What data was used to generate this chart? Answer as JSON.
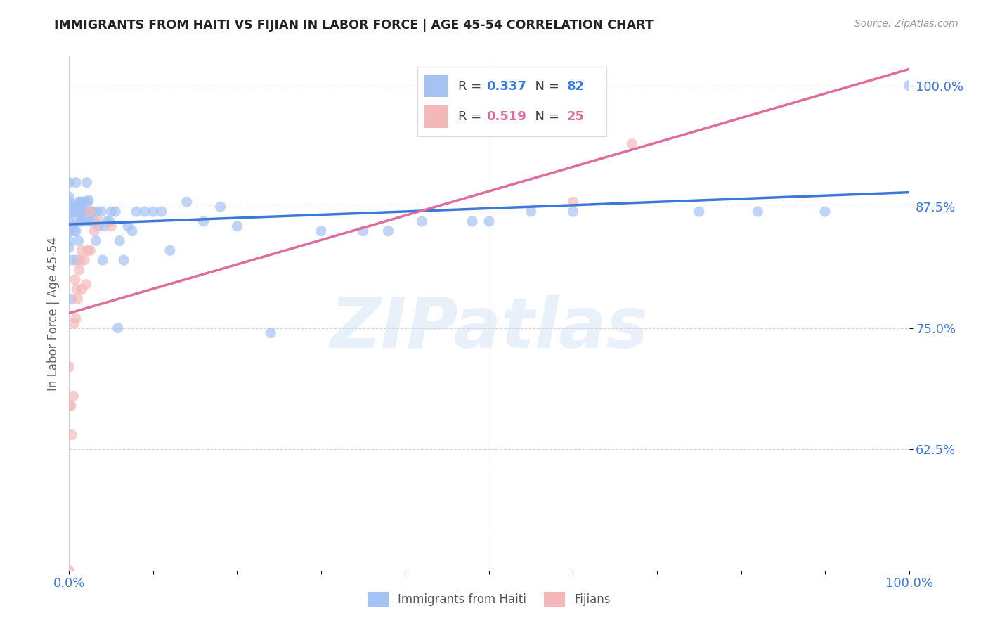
{
  "title": "IMMIGRANTS FROM HAITI VS FIJIAN IN LABOR FORCE | AGE 45-54 CORRELATION CHART",
  "source": "Source: ZipAtlas.com",
  "ylabel": "In Labor Force | Age 45-54",
  "xlim": [
    0.0,
    1.0
  ],
  "ylim": [
    0.5,
    1.03
  ],
  "yticks": [
    0.625,
    0.75,
    0.875,
    1.0
  ],
  "ytick_labels": [
    "62.5%",
    "75.0%",
    "87.5%",
    "100.0%"
  ],
  "xticks": [
    0.0,
    0.1,
    0.2,
    0.3,
    0.4,
    0.5,
    0.6,
    0.7,
    0.8,
    0.9,
    1.0
  ],
  "xtick_labels": [
    "0.0%",
    "",
    "",
    "",
    "",
    "",
    "",
    "",
    "",
    "",
    "100.0%"
  ],
  "haiti_color": "#a4c2f4",
  "fijian_color": "#f4b8b8",
  "haiti_line_color": "#3c78d8",
  "fijian_line_color": "#e06c9e",
  "haiti_R": 0.337,
  "haiti_N": 82,
  "fijian_R": 0.519,
  "fijian_N": 25,
  "watermark": "ZIPatlas",
  "haiti_scatter_x": [
    0.0,
    0.0,
    0.0,
    0.0,
    0.0,
    0.0,
    0.0,
    0.0,
    0.0,
    0.0,
    0.003,
    0.004,
    0.004,
    0.005,
    0.005,
    0.006,
    0.006,
    0.007,
    0.007,
    0.008,
    0.008,
    0.009,
    0.009,
    0.01,
    0.01,
    0.011,
    0.012,
    0.012,
    0.013,
    0.014,
    0.015,
    0.015,
    0.016,
    0.017,
    0.018,
    0.019,
    0.02,
    0.021,
    0.022,
    0.023,
    0.025,
    0.026,
    0.027,
    0.028,
    0.03,
    0.032,
    0.033,
    0.035,
    0.038,
    0.04,
    0.042,
    0.045,
    0.048,
    0.05,
    0.055,
    0.058,
    0.06,
    0.065,
    0.07,
    0.075,
    0.08,
    0.09,
    0.1,
    0.11,
    0.12,
    0.14,
    0.16,
    0.18,
    0.2,
    0.24,
    0.3,
    0.35,
    0.38,
    0.42,
    0.48,
    0.5,
    0.55,
    0.6,
    0.75,
    0.82,
    0.9,
    1.0
  ],
  "haiti_scatter_y": [
    0.833,
    0.84,
    0.85,
    0.86,
    0.867,
    0.87,
    0.875,
    0.88,
    0.885,
    0.9,
    0.78,
    0.82,
    0.855,
    0.87,
    0.875,
    0.85,
    0.87,
    0.87,
    0.875,
    0.85,
    0.9,
    0.82,
    0.87,
    0.86,
    0.87,
    0.84,
    0.87,
    0.88,
    0.88,
    0.86,
    0.86,
    0.88,
    0.87,
    0.87,
    0.88,
    0.87,
    0.86,
    0.9,
    0.88,
    0.882,
    0.86,
    0.86,
    0.87,
    0.87,
    0.86,
    0.84,
    0.87,
    0.855,
    0.87,
    0.82,
    0.855,
    0.86,
    0.86,
    0.87,
    0.87,
    0.75,
    0.84,
    0.82,
    0.855,
    0.85,
    0.87,
    0.87,
    0.87,
    0.87,
    0.83,
    0.88,
    0.86,
    0.875,
    0.855,
    0.745,
    0.85,
    0.85,
    0.85,
    0.86,
    0.86,
    0.86,
    0.87,
    0.87,
    0.87,
    0.87,
    0.87,
    1.0
  ],
  "fijian_scatter_x": [
    0.0,
    0.0,
    0.0,
    0.002,
    0.003,
    0.005,
    0.006,
    0.007,
    0.008,
    0.009,
    0.01,
    0.012,
    0.013,
    0.015,
    0.015,
    0.018,
    0.02,
    0.022,
    0.025,
    0.025,
    0.03,
    0.035,
    0.05,
    0.6,
    0.67
  ],
  "fijian_scatter_y": [
    0.5,
    0.67,
    0.71,
    0.67,
    0.64,
    0.68,
    0.755,
    0.8,
    0.76,
    0.79,
    0.78,
    0.81,
    0.82,
    0.79,
    0.83,
    0.82,
    0.795,
    0.83,
    0.83,
    0.87,
    0.85,
    0.86,
    0.855,
    0.88,
    0.94
  ]
}
